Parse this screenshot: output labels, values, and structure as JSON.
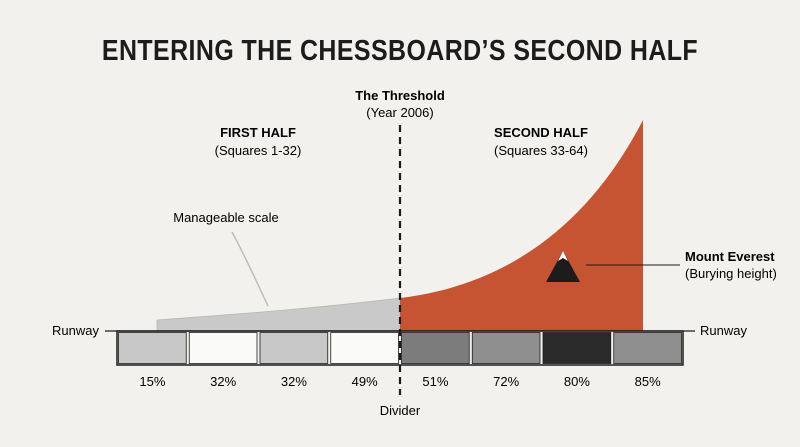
{
  "title": "ENTERING THE CHESSBOARD’S SECOND HALF",
  "threshold": {
    "title": "The Threshold",
    "subtitle": "(Year 2006)"
  },
  "first_half": {
    "title": "FIRST HALF",
    "subtitle": "(Squares 1-32)"
  },
  "second_half": {
    "title": "SECOND HALF",
    "subtitle": "(Squares 33-64)"
  },
  "callouts": {
    "manageable": "Manageable scale",
    "everest_title": "Mount Everest",
    "everest_subtitle": "(Burying height)"
  },
  "runway_left": "Runway",
  "runway_right": "Runway",
  "divider_label": "Divider",
  "colors": {
    "background": "#f2f1ed",
    "first_half_area": "#c9c9c9",
    "second_half_area": "#c65331",
    "text": "#1c1c1c"
  },
  "icons": {
    "everest": "mountain-icon"
  },
  "segments": [
    {
      "label": "15%",
      "fill": "#c8c8c8"
    },
    {
      "label": "32%",
      "fill": "#fafaf8"
    },
    {
      "label": "32%",
      "fill": "#c8c8c8"
    },
    {
      "label": "49%",
      "fill": "#fafaf8"
    },
    {
      "label": "51%",
      "fill": "#7c7c7c"
    },
    {
      "label": "72%",
      "fill": "#8f8f8f"
    },
    {
      "label": "80%",
      "fill": "#2a2a2a"
    },
    {
      "label": "85%",
      "fill": "#8f8f8f"
    }
  ]
}
